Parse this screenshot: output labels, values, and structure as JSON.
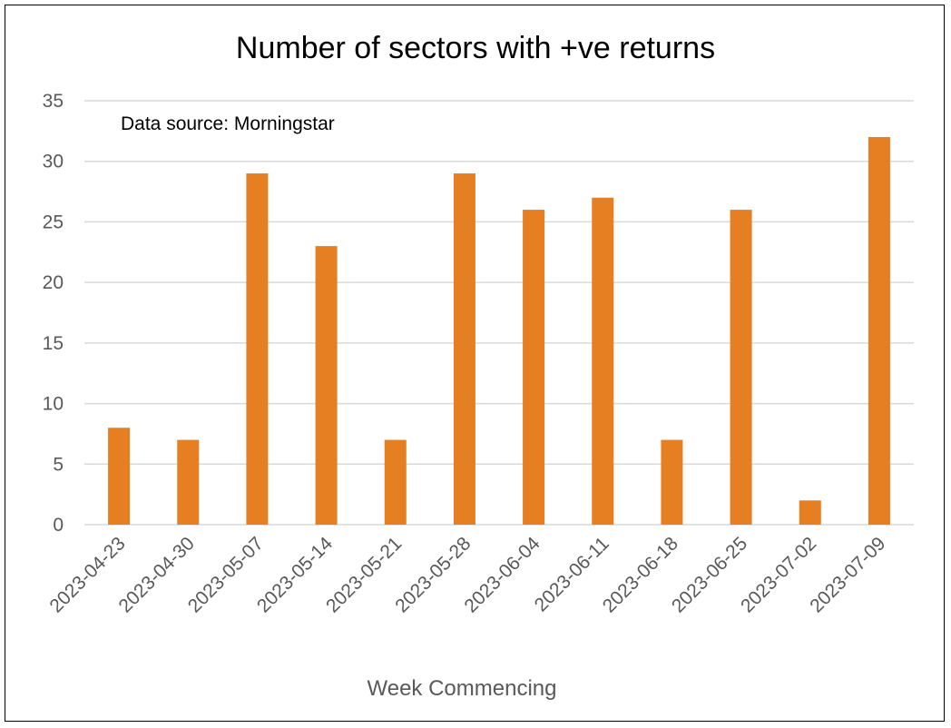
{
  "chart_data": {
    "type": "bar",
    "title": "Number of sectors with +ve returns",
    "annotation": "Data source: Morningstar",
    "xlabel": "Week Commencing",
    "ylabel": "",
    "categories": [
      "2023-04-23",
      "2023-04-30",
      "2023-05-07",
      "2023-05-14",
      "2023-05-21",
      "2023-05-28",
      "2023-06-04",
      "2023-06-11",
      "2023-06-18",
      "2023-06-25",
      "2023-07-02",
      "2023-07-09"
    ],
    "values": [
      8,
      7,
      29,
      23,
      7,
      29,
      26,
      27,
      7,
      26,
      2,
      32
    ],
    "ylim": [
      0,
      35
    ],
    "yticks": [
      0,
      5,
      10,
      15,
      20,
      25,
      30,
      35
    ],
    "grid": true,
    "legend": "none",
    "bar_color": "#e67e22"
  }
}
